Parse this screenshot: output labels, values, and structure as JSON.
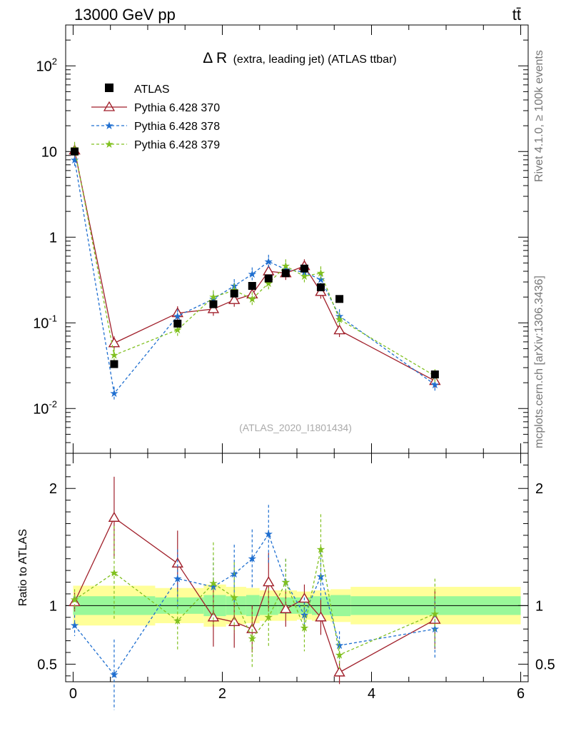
{
  "header": {
    "beam": "13000 GeV pp",
    "process": "tt̄",
    "side_label_top": "Rivet 4.1.0, ≥ 100k events",
    "side_label_bottom": "mcplots.cern.ch [arXiv:1306.3436]"
  },
  "chart_data": {
    "type": "scatter",
    "title": "Δ R (extra, leading jet) (ATLAS ttbar)",
    "title_symbol": "Δ R",
    "title_rest": "(extra, leading jet) (ATLAS ttbar)",
    "analysis_id": "(ATLAS_2020_I1801434)",
    "xlim": [
      -0.1,
      6.1
    ],
    "main_ylim": [
      0.003,
      300
    ],
    "main_yscale": "log",
    "main_ytick_labels": [
      "10^2",
      "10",
      "1",
      "10^-1",
      "10^-2"
    ],
    "ratio_ylabel": "Ratio to ATLAS",
    "ratio_ylim": [
      0.35,
      2.3
    ],
    "ratio_ytick_labels": [
      "2",
      "1",
      "0.5"
    ],
    "xtick_labels": [
      "0",
      "2",
      "4",
      "6"
    ],
    "legend_position": "top-left",
    "data": {
      "name": "ATLAS",
      "x": [
        0.02,
        0.55,
        1.4,
        1.88,
        2.16,
        2.4,
        2.62,
        2.85,
        3.1,
        3.32,
        3.57,
        4.85
      ],
      "y": [
        10.0,
        0.033,
        0.098,
        0.165,
        0.22,
        0.27,
        0.33,
        0.38,
        0.43,
        0.26,
        0.19,
        0.025
      ]
    },
    "ratio_bands": {
      "edges": [
        0.0,
        1.1,
        1.75,
        2.05,
        2.32,
        2.5,
        2.75,
        3.0,
        3.2,
        3.45,
        3.72,
        6.0
      ],
      "inner": [
        0.08,
        0.07,
        0.09,
        0.08,
        0.09,
        0.08,
        0.07,
        0.07,
        0.08,
        0.09,
        0.08
      ],
      "outer": [
        0.17,
        0.15,
        0.18,
        0.16,
        0.15,
        0.13,
        0.13,
        0.12,
        0.13,
        0.14,
        0.16
      ]
    },
    "series": [
      {
        "name": "Pythia 6.428 370",
        "color": "#a01f2a",
        "marker": "triangle",
        "linestyle": "solid",
        "x": [
          0.02,
          0.55,
          1.4,
          1.88,
          2.16,
          2.4,
          2.62,
          2.85,
          3.1,
          3.32,
          3.57,
          4.85
        ],
        "y": [
          10.3,
          0.058,
          0.13,
          0.145,
          0.185,
          0.215,
          0.4,
          0.38,
          0.46,
          0.23,
          0.082,
          0.021
        ],
        "ratio": [
          1.03,
          1.75,
          1.36,
          0.9,
          0.86,
          0.8,
          1.2,
          0.97,
          1.06,
          0.9,
          0.43,
          0.88
        ],
        "ratio_err": [
          0.08,
          0.35,
          0.28,
          0.25,
          0.22,
          0.2,
          0.25,
          0.15,
          0.12,
          0.15,
          0.1,
          0.25
        ]
      },
      {
        "name": "Pythia 6.428 378",
        "color": "#1f6fd0",
        "marker": "star",
        "linestyle": "dashed",
        "x": [
          0.02,
          0.55,
          1.4,
          1.88,
          2.16,
          2.4,
          2.62,
          2.85,
          3.1,
          3.32,
          3.57,
          4.85
        ],
        "y": [
          8.0,
          0.015,
          0.12,
          0.19,
          0.27,
          0.37,
          0.52,
          0.42,
          0.39,
          0.32,
          0.12,
          0.019
        ],
        "ratio": [
          0.83,
          0.41,
          1.23,
          1.16,
          1.27,
          1.4,
          1.61,
          1.2,
          0.92,
          1.25,
          0.66,
          0.8
        ],
        "ratio_err": [
          0.09,
          0.3,
          0.25,
          0.25,
          0.25,
          0.25,
          0.25,
          0.2,
          0.15,
          0.2,
          0.12,
          0.25
        ]
      },
      {
        "name": "Pythia 6.428 379",
        "color": "#80c020",
        "marker": "star",
        "linestyle": "dashed",
        "x": [
          0.02,
          0.55,
          1.4,
          1.88,
          2.16,
          2.4,
          2.62,
          2.85,
          3.1,
          3.32,
          3.57,
          4.85
        ],
        "y": [
          10.8,
          0.042,
          0.083,
          0.2,
          0.24,
          0.19,
          0.29,
          0.46,
          0.35,
          0.38,
          0.11,
          0.024
        ],
        "ratio": [
          1.05,
          1.28,
          0.87,
          1.19,
          1.07,
          0.72,
          0.9,
          1.2,
          0.81,
          1.48,
          0.58,
          0.93
        ],
        "ratio_err": [
          0.09,
          0.4,
          0.25,
          0.35,
          0.3,
          0.25,
          0.25,
          0.2,
          0.2,
          0.3,
          0.12,
          0.3
        ]
      }
    ]
  }
}
